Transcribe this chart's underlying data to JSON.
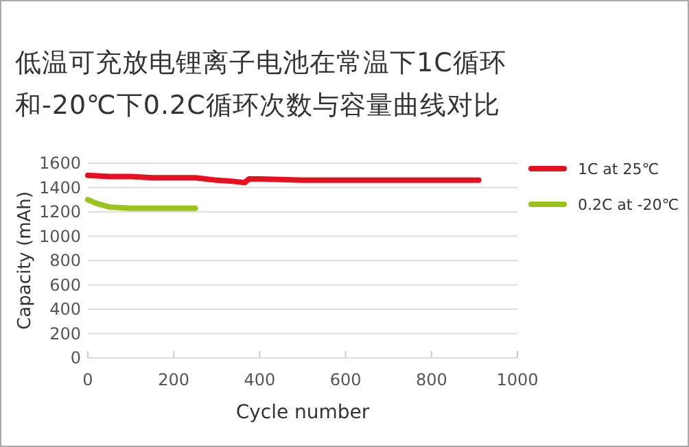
{
  "chart_data": {
    "type": "line",
    "title": "低温可充放电锂离子电池在常温下1C循环和-20℃下0.2C循环次数与容量曲线对比",
    "xlabel": "Cycle number",
    "ylabel": "Capacity (mAh)",
    "xlim": [
      0,
      1000
    ],
    "ylim": [
      0,
      1600
    ],
    "xticks": [
      0,
      200,
      400,
      600,
      800,
      1000
    ],
    "yticks": [
      0,
      200,
      400,
      600,
      800,
      1000,
      1200,
      1400,
      1600
    ],
    "grid": "y",
    "legend": "right",
    "marker": "none",
    "line_style": "solid",
    "series": [
      {
        "name": "1C at 25℃",
        "color": "#e8101e",
        "x": [
          0,
          50,
          100,
          150,
          200,
          250,
          300,
          340,
          365,
          375,
          400,
          500,
          600,
          700,
          800,
          910
        ],
        "values": [
          1500,
          1490,
          1490,
          1480,
          1480,
          1480,
          1460,
          1450,
          1440,
          1470,
          1470,
          1460,
          1460,
          1460,
          1460,
          1460
        ]
      },
      {
        "name": "0.2C at -20℃",
        "color": "#9bc31c",
        "x": [
          0,
          20,
          50,
          100,
          150,
          200,
          250
        ],
        "values": [
          1300,
          1270,
          1240,
          1230,
          1230,
          1230,
          1230
        ]
      }
    ]
  }
}
